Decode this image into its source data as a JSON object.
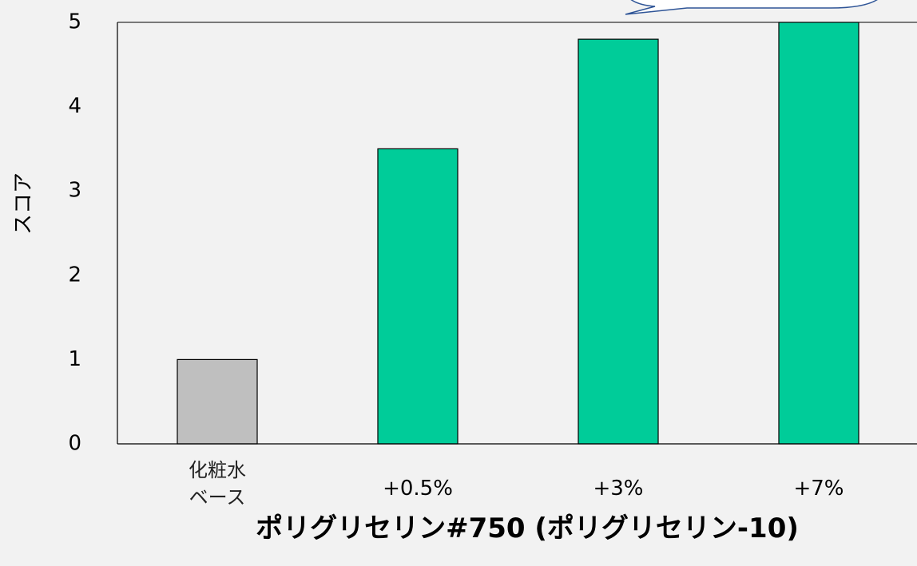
{
  "chart_data": {
    "type": "bar",
    "categories": [
      "化粧水\nベース",
      "+0.5%",
      "+3%",
      "+7%"
    ],
    "values": [
      1,
      3.5,
      4.8,
      5
    ],
    "colors": [
      "#bfbfbf",
      "#00cc99",
      "#00cc99",
      "#00cc99"
    ],
    "ylim": [
      0,
      5
    ],
    "yticks": [
      0,
      1,
      2,
      3,
      4,
      5
    ],
    "y_label": "スコア",
    "x_label": "ポリグリセリン#750 (ポリグリセリン-10)",
    "grid": false
  }
}
